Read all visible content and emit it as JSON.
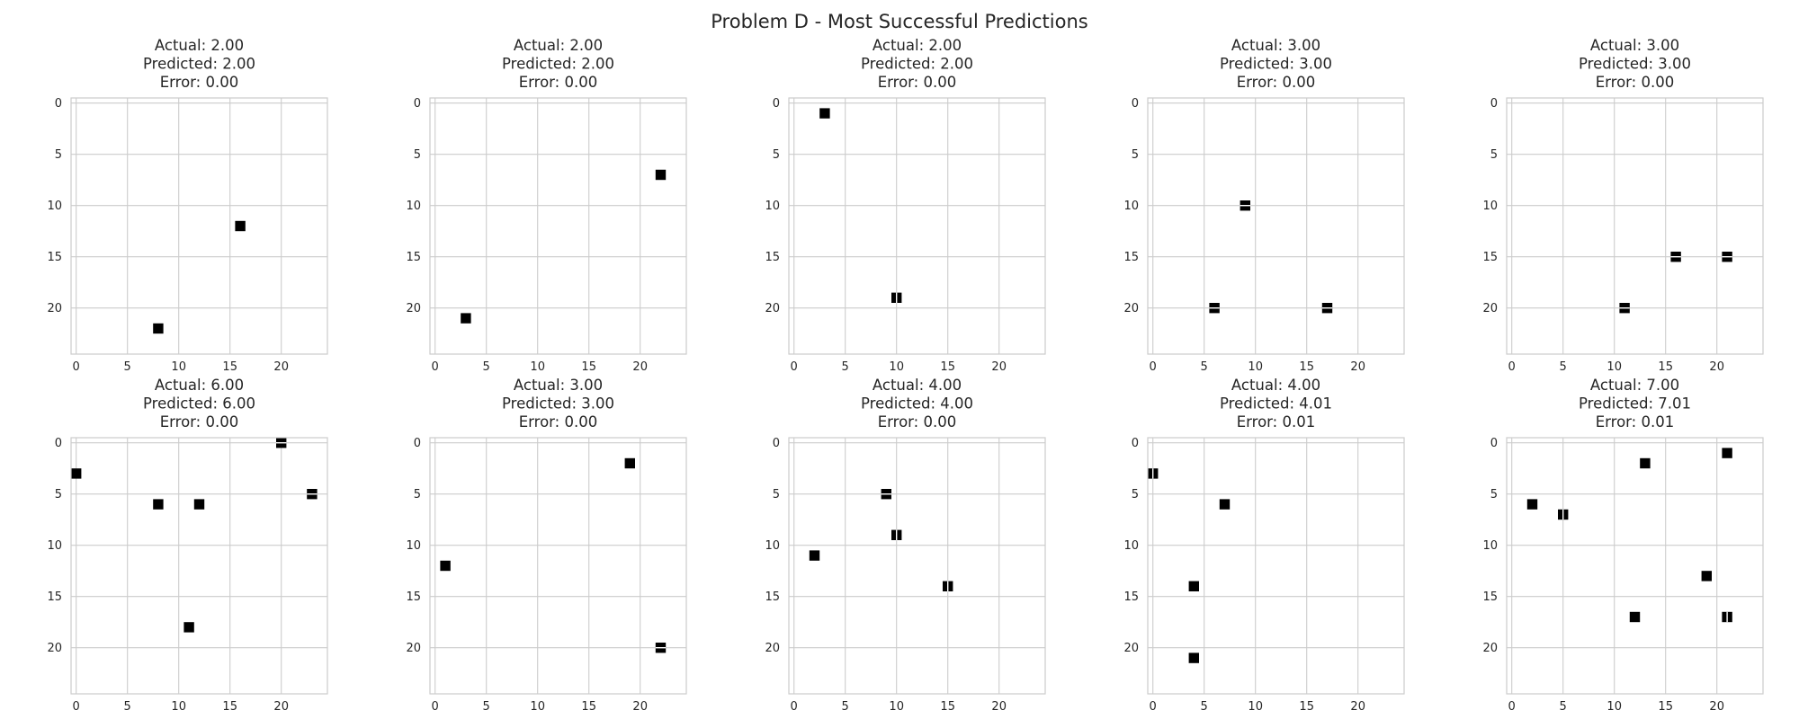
{
  "figure": {
    "suptitle": "Problem D - Most Successful Predictions"
  },
  "chart_data": [
    {
      "type": "heatmap",
      "title_lines": [
        "Actual: 2.00",
        "Predicted: 2.00",
        "Error: 0.00"
      ],
      "actual": 2.0,
      "predicted": 2.0,
      "error": 0.0,
      "grid_size": 25,
      "x_ticks": [
        0,
        5,
        10,
        15,
        20
      ],
      "y_ticks": [
        0,
        5,
        10,
        15,
        20
      ],
      "xlim": [
        -0.5,
        24.5
      ],
      "ylim": [
        24.5,
        -0.5
      ],
      "grid": true,
      "colormap": "binary",
      "filled_cells": [
        {
          "x": 16,
          "y": 12,
          "style": "solid"
        },
        {
          "x": 8,
          "y": 22,
          "style": "solid"
        }
      ]
    },
    {
      "type": "heatmap",
      "title_lines": [
        "Actual: 2.00",
        "Predicted: 2.00",
        "Error: 0.00"
      ],
      "actual": 2.0,
      "predicted": 2.0,
      "error": 0.0,
      "grid_size": 25,
      "x_ticks": [
        0,
        5,
        10,
        15,
        20
      ],
      "y_ticks": [
        0,
        5,
        10,
        15,
        20
      ],
      "xlim": [
        -0.5,
        24.5
      ],
      "ylim": [
        24.5,
        -0.5
      ],
      "grid": true,
      "colormap": "binary",
      "filled_cells": [
        {
          "x": 22,
          "y": 7,
          "style": "solid"
        },
        {
          "x": 3,
          "y": 21,
          "style": "solid"
        }
      ]
    },
    {
      "type": "heatmap",
      "title_lines": [
        "Actual: 2.00",
        "Predicted: 2.00",
        "Error: 0.00"
      ],
      "actual": 2.0,
      "predicted": 2.0,
      "error": 0.0,
      "grid_size": 25,
      "x_ticks": [
        0,
        5,
        10,
        15,
        20
      ],
      "y_ticks": [
        0,
        5,
        10,
        15,
        20
      ],
      "xlim": [
        -0.5,
        24.5
      ],
      "ylim": [
        24.5,
        -0.5
      ],
      "grid": true,
      "colormap": "binary",
      "filled_cells": [
        {
          "x": 3,
          "y": 1,
          "style": "solid"
        },
        {
          "x": 10,
          "y": 19,
          "style": "vsplit"
        }
      ]
    },
    {
      "type": "heatmap",
      "title_lines": [
        "Actual: 3.00",
        "Predicted: 3.00",
        "Error: 0.00"
      ],
      "actual": 3.0,
      "predicted": 3.0,
      "error": 0.0,
      "grid_size": 25,
      "x_ticks": [
        0,
        5,
        10,
        15,
        20
      ],
      "y_ticks": [
        0,
        5,
        10,
        15,
        20
      ],
      "xlim": [
        -0.5,
        24.5
      ],
      "ylim": [
        24.5,
        -0.5
      ],
      "grid": true,
      "colormap": "binary",
      "filled_cells": [
        {
          "x": 9,
          "y": 10,
          "style": "hsplit"
        },
        {
          "x": 6,
          "y": 20,
          "style": "hsplit"
        },
        {
          "x": 17,
          "y": 20,
          "style": "hsplit"
        }
      ]
    },
    {
      "type": "heatmap",
      "title_lines": [
        "Actual: 3.00",
        "Predicted: 3.00",
        "Error: 0.00"
      ],
      "actual": 3.0,
      "predicted": 3.0,
      "error": 0.0,
      "grid_size": 25,
      "x_ticks": [
        0,
        5,
        10,
        15,
        20
      ],
      "y_ticks": [
        0,
        5,
        10,
        15,
        20
      ],
      "xlim": [
        -0.5,
        24.5
      ],
      "ylim": [
        24.5,
        -0.5
      ],
      "grid": true,
      "colormap": "binary",
      "filled_cells": [
        {
          "x": 16,
          "y": 15,
          "style": "hsplit"
        },
        {
          "x": 21,
          "y": 15,
          "style": "hsplit"
        },
        {
          "x": 11,
          "y": 20,
          "style": "hsplit"
        }
      ]
    },
    {
      "type": "heatmap",
      "title_lines": [
        "Actual: 6.00",
        "Predicted: 6.00",
        "Error: 0.00"
      ],
      "actual": 6.0,
      "predicted": 6.0,
      "error": 0.0,
      "grid_size": 25,
      "x_ticks": [
        0,
        5,
        10,
        15,
        20
      ],
      "y_ticks": [
        0,
        5,
        10,
        15,
        20
      ],
      "xlim": [
        -0.5,
        24.5
      ],
      "ylim": [
        24.5,
        -0.5
      ],
      "grid": true,
      "colormap": "binary",
      "filled_cells": [
        {
          "x": 20,
          "y": 0,
          "style": "hsplit"
        },
        {
          "x": 0,
          "y": 3,
          "style": "solid"
        },
        {
          "x": 23,
          "y": 5,
          "style": "hsplit"
        },
        {
          "x": 8,
          "y": 6,
          "style": "solid"
        },
        {
          "x": 12,
          "y": 6,
          "style": "solid"
        },
        {
          "x": 11,
          "y": 18,
          "style": "solid"
        }
      ]
    },
    {
      "type": "heatmap",
      "title_lines": [
        "Actual: 3.00",
        "Predicted: 3.00",
        "Error: 0.00"
      ],
      "actual": 3.0,
      "predicted": 3.0,
      "error": 0.0,
      "grid_size": 25,
      "x_ticks": [
        0,
        5,
        10,
        15,
        20
      ],
      "y_ticks": [
        0,
        5,
        10,
        15,
        20
      ],
      "xlim": [
        -0.5,
        24.5
      ],
      "ylim": [
        24.5,
        -0.5
      ],
      "grid": true,
      "colormap": "binary",
      "filled_cells": [
        {
          "x": 19,
          "y": 2,
          "style": "solid"
        },
        {
          "x": 1,
          "y": 12,
          "style": "solid"
        },
        {
          "x": 22,
          "y": 20,
          "style": "hsplit"
        }
      ]
    },
    {
      "type": "heatmap",
      "title_lines": [
        "Actual: 4.00",
        "Predicted: 4.00",
        "Error: 0.00"
      ],
      "actual": 4.0,
      "predicted": 4.0,
      "error": 0.0,
      "grid_size": 25,
      "x_ticks": [
        0,
        5,
        10,
        15,
        20
      ],
      "y_ticks": [
        0,
        5,
        10,
        15,
        20
      ],
      "xlim": [
        -0.5,
        24.5
      ],
      "ylim": [
        24.5,
        -0.5
      ],
      "grid": true,
      "colormap": "binary",
      "filled_cells": [
        {
          "x": 9,
          "y": 5,
          "style": "hsplit"
        },
        {
          "x": 10,
          "y": 9,
          "style": "vsplit"
        },
        {
          "x": 2,
          "y": 11,
          "style": "solid"
        },
        {
          "x": 15,
          "y": 14,
          "style": "vsplit"
        }
      ]
    },
    {
      "type": "heatmap",
      "title_lines": [
        "Actual: 4.00",
        "Predicted: 4.01",
        "Error: 0.01"
      ],
      "actual": 4.0,
      "predicted": 4.01,
      "error": 0.01,
      "grid_size": 25,
      "x_ticks": [
        0,
        5,
        10,
        15,
        20
      ],
      "y_ticks": [
        0,
        5,
        10,
        15,
        20
      ],
      "xlim": [
        -0.5,
        24.5
      ],
      "ylim": [
        24.5,
        -0.5
      ],
      "grid": true,
      "colormap": "binary",
      "filled_cells": [
        {
          "x": 0,
          "y": 3,
          "style": "vsplit"
        },
        {
          "x": 7,
          "y": 6,
          "style": "solid"
        },
        {
          "x": 4,
          "y": 14,
          "style": "solid"
        },
        {
          "x": 4,
          "y": 21,
          "style": "solid"
        }
      ]
    },
    {
      "type": "heatmap",
      "title_lines": [
        "Actual: 7.00",
        "Predicted: 7.01",
        "Error: 0.01"
      ],
      "actual": 7.0,
      "predicted": 7.01,
      "error": 0.01,
      "grid_size": 25,
      "x_ticks": [
        0,
        5,
        10,
        15,
        20
      ],
      "y_ticks": [
        0,
        5,
        10,
        15,
        20
      ],
      "xlim": [
        -0.5,
        24.5
      ],
      "ylim": [
        24.5,
        -0.5
      ],
      "grid": true,
      "colormap": "binary",
      "filled_cells": [
        {
          "x": 21,
          "y": 1,
          "style": "solid"
        },
        {
          "x": 13,
          "y": 2,
          "style": "solid"
        },
        {
          "x": 2,
          "y": 6,
          "style": "solid"
        },
        {
          "x": 5,
          "y": 7,
          "style": "vsplit"
        },
        {
          "x": 19,
          "y": 13,
          "style": "solid"
        },
        {
          "x": 12,
          "y": 17,
          "style": "solid"
        },
        {
          "x": 21,
          "y": 17,
          "style": "vsplit"
        }
      ]
    }
  ],
  "colors": {
    "background": "#ffffff",
    "grid": "#cccccc",
    "spine": "#cccccc",
    "cell_fill": "#000000",
    "text": "#262626"
  }
}
